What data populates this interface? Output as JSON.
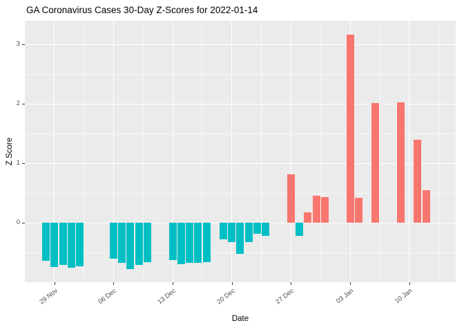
{
  "chart_data": {
    "type": "bar",
    "title": "GA Coronavirus Cases 30-Day Z-Scores for 2022-01-14",
    "xlabel": "Date",
    "ylabel": "Z Score",
    "legend": "none",
    "x_axis": {
      "unit": "days (day 5 = tick '29 Nov')",
      "domain_days": [
        1.5,
        52.5
      ],
      "ticks": [
        {
          "day": 5,
          "label": "29 Nov"
        },
        {
          "day": 12,
          "label": "06 Dec"
        },
        {
          "day": 19,
          "label": "13 Dec"
        },
        {
          "day": 26,
          "label": "20 Dec"
        },
        {
          "day": 33,
          "label": "27 Dec"
        },
        {
          "day": 40,
          "label": "03 Jan"
        },
        {
          "day": 47,
          "label": "10 Jan"
        }
      ],
      "minor_ticks": [
        8.5,
        15.5,
        22.5,
        29.5,
        36.5,
        43.5,
        50.5
      ]
    },
    "y_axis": {
      "ylim": [
        -1.0,
        3.4
      ],
      "major_ticks": [
        0,
        1,
        2,
        3
      ],
      "minor_ticks": [
        -0.5,
        0.5,
        1.5,
        2.5
      ]
    },
    "bar_width_days": 0.9,
    "colors": {
      "positive": "#F8766D",
      "negative": "#00BFC4",
      "panel_background": "#EBEBEB",
      "gridline": "#FFFFFF",
      "axis_text": "#4D4D4D"
    },
    "bars": [
      {
        "day": 4,
        "value": -0.64
      },
      {
        "day": 5,
        "value": -0.74
      },
      {
        "day": 6,
        "value": -0.71
      },
      {
        "day": 7,
        "value": -0.76
      },
      {
        "day": 8,
        "value": -0.73
      },
      {
        "day": 12,
        "value": -0.6
      },
      {
        "day": 13,
        "value": -0.68
      },
      {
        "day": 14,
        "value": -0.78
      },
      {
        "day": 15,
        "value": -0.71
      },
      {
        "day": 16,
        "value": -0.66
      },
      {
        "day": 19,
        "value": -0.63
      },
      {
        "day": 20,
        "value": -0.7
      },
      {
        "day": 21,
        "value": -0.68
      },
      {
        "day": 22,
        "value": -0.67
      },
      {
        "day": 23,
        "value": -0.66
      },
      {
        "day": 25,
        "value": -0.28
      },
      {
        "day": 26,
        "value": -0.33
      },
      {
        "day": 27,
        "value": -0.52
      },
      {
        "day": 28,
        "value": -0.33
      },
      {
        "day": 29,
        "value": -0.18
      },
      {
        "day": 30,
        "value": -0.22
      },
      {
        "day": 33,
        "value": 0.82
      },
      {
        "day": 34,
        "value": -0.22
      },
      {
        "day": 35,
        "value": 0.17
      },
      {
        "day": 36,
        "value": 0.45
      },
      {
        "day": 37,
        "value": 0.43
      },
      {
        "day": 40,
        "value": 3.17
      },
      {
        "day": 41,
        "value": 0.42
      },
      {
        "day": 43,
        "value": 2.02
      },
      {
        "day": 46,
        "value": 2.03
      },
      {
        "day": 48,
        "value": 1.4
      },
      {
        "day": 49,
        "value": 0.55
      }
    ]
  }
}
